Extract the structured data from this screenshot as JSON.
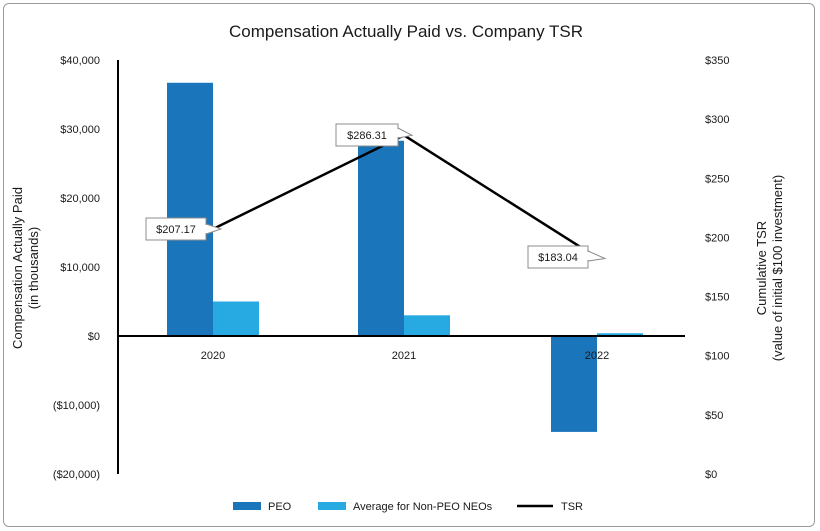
{
  "chart_data": {
    "type": "bar",
    "title": "Compensation Actually Paid vs. Company TSR",
    "ylabel_left": [
      "Compensation Actually Paid",
      "(in thousands)"
    ],
    "ylabel_right": [
      "Cumulative TSR",
      "(value of initial $100 investment)"
    ],
    "categories": [
      "2020",
      "2021",
      "2022"
    ],
    "y_left": {
      "min": -20000,
      "max": 40000,
      "ticks": [
        40000,
        30000,
        20000,
        10000,
        0,
        -10000,
        -20000
      ],
      "tick_labels": [
        "$40,000",
        "$30,000",
        "$20,000",
        "$10,000",
        "$0",
        "($10,000)",
        "($20,000)"
      ]
    },
    "y_right": {
      "min": 0,
      "max": 350,
      "ticks": [
        350,
        300,
        250,
        200,
        150,
        100,
        50,
        0
      ],
      "tick_labels": [
        "$350",
        "$300",
        "$250",
        "$200",
        "$150",
        "$100",
        "$50",
        "$0"
      ]
    },
    "series": [
      {
        "name": "PEO",
        "type": "bar",
        "axis": "left",
        "color": "#1b75bb",
        "values": [
          36700,
          28300,
          -13900
        ]
      },
      {
        "name": "Average for Non-PEO NEOs",
        "type": "bar",
        "axis": "left",
        "color": "#27aae1",
        "values": [
          5000,
          3000,
          400
        ]
      },
      {
        "name": "TSR",
        "type": "line",
        "axis": "right",
        "color": "#000000",
        "values": [
          207.17,
          286.31,
          183.04
        ],
        "data_labels": [
          "$207.17",
          "$286.31",
          "$183.04"
        ]
      }
    ],
    "legend_position": "bottom",
    "grid": false
  }
}
